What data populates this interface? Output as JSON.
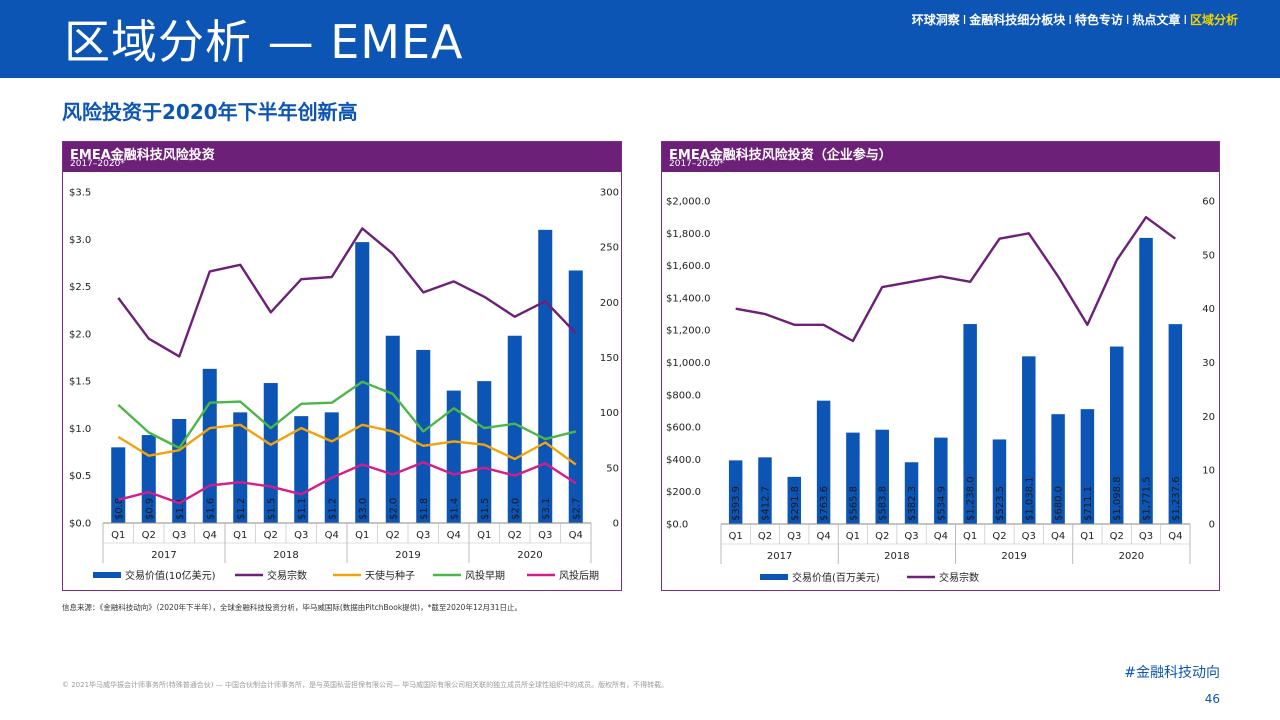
{
  "header": {
    "title": "区域分析 — EMEA",
    "nav": [
      "环球洞察",
      "金融科技细分板块",
      "特色专访",
      "热点文章",
      "区域分析"
    ],
    "nav_separator": "I",
    "active_nav": "区域分析"
  },
  "subtitle": "风险投资于2020年下半年创新高",
  "colors": {
    "header_bg": "#0c55b4",
    "panel_head_bg": "#6d2077",
    "bar": "#0c55b4",
    "deal_count": "#6d2077",
    "angel_seed": "#f0a30a",
    "early_vc": "#4cb748",
    "late_vc": "#d41d8c",
    "nav_active": "#f0d300"
  },
  "chart_data": [
    {
      "type": "bar",
      "title": "EMEA金融科技风险投资",
      "subtitle": "2017–2020*",
      "categories": [
        "Q1",
        "Q2",
        "Q3",
        "Q4",
        "Q1",
        "Q2",
        "Q3",
        "Q4",
        "Q1",
        "Q2",
        "Q3",
        "Q4",
        "Q1",
        "Q2",
        "Q3",
        "Q4"
      ],
      "years": [
        "2017",
        "2018",
        "2019",
        "2020"
      ],
      "left_axis": {
        "min": 0,
        "max": 3.5,
        "ticks": [
          "$0.0",
          "$0.5",
          "$1.0",
          "$1.5",
          "$2.0",
          "$2.5",
          "$3.0",
          "$3.5"
        ]
      },
      "right_axis": {
        "min": 0,
        "max": 300,
        "ticks": [
          "0",
          "50",
          "100",
          "150",
          "200",
          "250",
          "300"
        ]
      },
      "series": [
        {
          "name": "交易价值(10亿美元)",
          "kind": "bar",
          "axis": "left",
          "values": [
            0.8,
            0.93,
            1.1,
            1.63,
            1.17,
            1.48,
            1.13,
            1.17,
            2.97,
            1.98,
            1.83,
            1.4,
            1.5,
            1.98,
            3.1,
            2.67
          ],
          "labels": [
            "$0.8",
            "$0.9",
            "$1.1",
            "$1.6",
            "$1.2",
            "$1.5",
            "$1.1",
            "$1.2",
            "$3.0",
            "$2.0",
            "$1.8",
            "$1.4",
            "$1.5",
            "$2.0",
            "$3.1",
            "$2.7"
          ]
        },
        {
          "name": "交易宗数",
          "kind": "line",
          "axis": "right",
          "values": [
            204,
            167,
            151,
            228,
            234,
            191,
            221,
            223,
            267,
            244,
            209,
            219,
            205,
            187,
            201,
            172
          ]
        },
        {
          "name": "天使与种子",
          "kind": "line",
          "axis": "right",
          "values": [
            78,
            61,
            66,
            86,
            89,
            71,
            86,
            74,
            89,
            83,
            70,
            74,
            71,
            58,
            73,
            53
          ]
        },
        {
          "name": "风投早期",
          "kind": "line",
          "axis": "right",
          "values": [
            107,
            82,
            68,
            109,
            110,
            86,
            108,
            109,
            128,
            117,
            83,
            104,
            86,
            90,
            76,
            83
          ]
        },
        {
          "name": "风投后期",
          "kind": "line",
          "axis": "right",
          "values": [
            21,
            28,
            18,
            34,
            37,
            33,
            26,
            41,
            53,
            44,
            55,
            44,
            50,
            43,
            54,
            36
          ]
        }
      ]
    },
    {
      "type": "bar",
      "title": "EMEA金融科技风险投资（企业参与）",
      "subtitle": "2017–2020*",
      "categories": [
        "Q1",
        "Q2",
        "Q3",
        "Q4",
        "Q1",
        "Q2",
        "Q3",
        "Q4",
        "Q1",
        "Q2",
        "Q3",
        "Q4",
        "Q1",
        "Q2",
        "Q3",
        "Q4"
      ],
      "years": [
        "2017",
        "2018",
        "2019",
        "2020"
      ],
      "left_axis": {
        "min": 0,
        "max": 2000,
        "ticks": [
          "$0.0",
          "$200.0",
          "$400.0",
          "$600.0",
          "$800.0",
          "$1,000.0",
          "$1,200.0",
          "$1,400.0",
          "$1,600.0",
          "$1,800.0",
          "$2,000.0"
        ]
      },
      "right_axis": {
        "min": 0,
        "max": 60,
        "ticks": [
          "0",
          "10",
          "20",
          "30",
          "40",
          "50",
          "60"
        ]
      },
      "series": [
        {
          "name": "交易价值(百万美元)",
          "kind": "bar",
          "axis": "left",
          "values": [
            393.9,
            412.7,
            291.8,
            763.6,
            565.8,
            583.8,
            382.3,
            534.9,
            1238.0,
            523.5,
            1038.1,
            680.0,
            711.1,
            1098.8,
            1771.5,
            1237.6
          ],
          "labels": [
            "$393.9",
            "$412.7",
            "$291.8",
            "$763.6",
            "$565.8",
            "$583.8",
            "$382.3",
            "$534.9",
            "$1,238.0",
            "$523.5",
            "$1,038.1",
            "$680.0",
            "$711.1",
            "$1,098.8",
            "$1,771.5",
            "$1,237.6"
          ]
        },
        {
          "name": "交易宗数",
          "kind": "line",
          "axis": "right",
          "values": [
            40,
            39,
            37,
            37,
            34,
            44,
            45,
            46,
            45,
            53,
            54,
            46,
            37,
            49,
            57,
            53
          ]
        }
      ]
    }
  ],
  "source": "信息来源：《金融科技动向》（2020年下半年），全球金融科技投资分析，毕马威国际(数据由PitchBook提供)，*截至2020年12月31日止。",
  "copyright": "© 2021毕马威华振会计师事务所(特殊普通合伙) — 中国合伙制会计师事务所，是与英国私营担保有限公司— 毕马威国际有限公司相关联的独立成员所全球性组织中的成员。版权所有，不得转载。",
  "hashtag": "#金融科技动向",
  "page_number": "46"
}
